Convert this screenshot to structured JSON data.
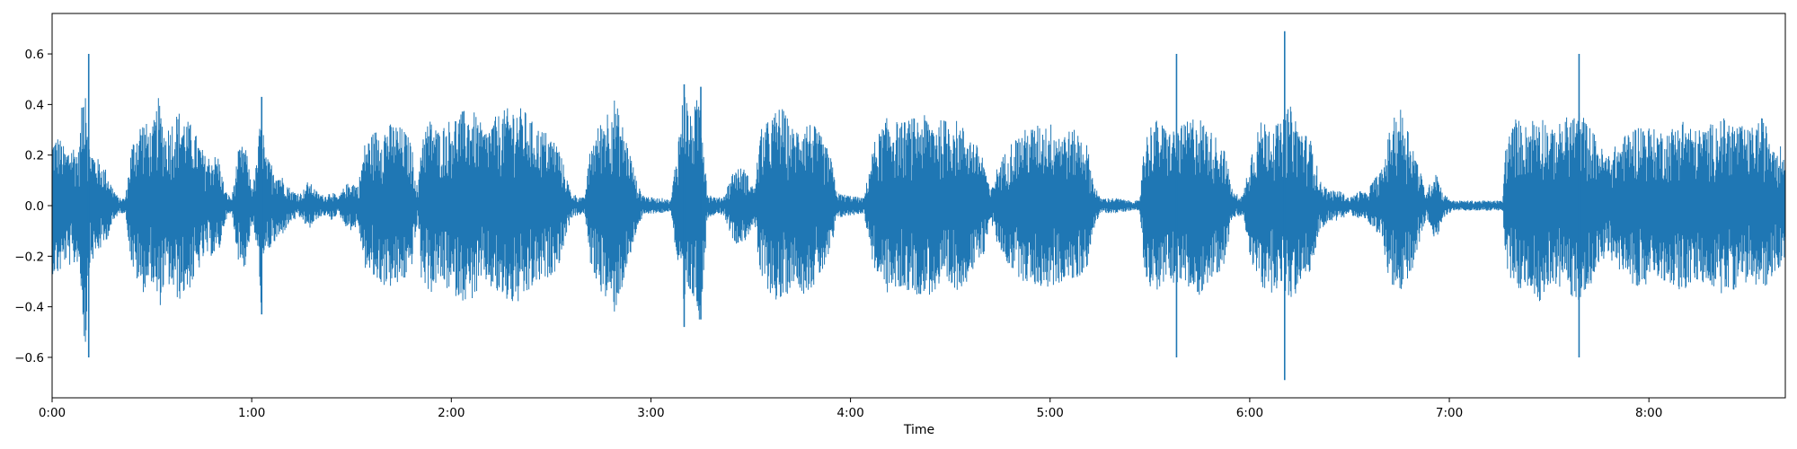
{
  "chart_data": {
    "type": "line",
    "title": "",
    "xlabel": "Time",
    "ylabel": "",
    "x_unit": "seconds",
    "xlim": [
      0,
      521
    ],
    "ylim": [
      -0.76,
      0.76
    ],
    "grid": false,
    "legend": "none",
    "line_color": "#1f77b4",
    "x_ticks": [
      {
        "value": 0,
        "label": "0:00"
      },
      {
        "value": 60,
        "label": "1:00"
      },
      {
        "value": 120,
        "label": "2:00"
      },
      {
        "value": 180,
        "label": "3:00"
      },
      {
        "value": 240,
        "label": "4:00"
      },
      {
        "value": 300,
        "label": "5:00"
      },
      {
        "value": 360,
        "label": "6:00"
      },
      {
        "value": 420,
        "label": "7:00"
      },
      {
        "value": 480,
        "label": "8:00"
      }
    ],
    "y_ticks": [
      {
        "value": 0.6,
        "label": "0.6"
      },
      {
        "value": 0.4,
        "label": "0.4"
      },
      {
        "value": 0.2,
        "label": "0.2"
      },
      {
        "value": 0.0,
        "label": "0.0"
      },
      {
        "value": -0.2,
        "label": "−0.2"
      },
      {
        "value": -0.4,
        "label": "−0.4"
      },
      {
        "value": -0.6,
        "label": "−0.6"
      }
    ],
    "envelope": [
      [
        0,
        0.27
      ],
      [
        2,
        0.28
      ],
      [
        4,
        0.22
      ],
      [
        6,
        0.25
      ],
      [
        8,
        0.22
      ],
      [
        10,
        0.6
      ],
      [
        11,
        0.25
      ],
      [
        13,
        0.2
      ],
      [
        16,
        0.15
      ],
      [
        18,
        0.08
      ],
      [
        20,
        0.03
      ],
      [
        22,
        0.03
      ],
      [
        24,
        0.25
      ],
      [
        27,
        0.35
      ],
      [
        30,
        0.3
      ],
      [
        32,
        0.43
      ],
      [
        34,
        0.3
      ],
      [
        38,
        0.38
      ],
      [
        42,
        0.32
      ],
      [
        46,
        0.2
      ],
      [
        50,
        0.2
      ],
      [
        52,
        0.06
      ],
      [
        54,
        0.03
      ],
      [
        56,
        0.22
      ],
      [
        58,
        0.25
      ],
      [
        60,
        0.08
      ],
      [
        61,
        0.12
      ],
      [
        62,
        0.25
      ],
      [
        63,
        0.43
      ],
      [
        64,
        0.2
      ],
      [
        67,
        0.15
      ],
      [
        69,
        0.12
      ],
      [
        72,
        0.06
      ],
      [
        75,
        0.05
      ],
      [
        77,
        0.1
      ],
      [
        80,
        0.05
      ],
      [
        82,
        0.04
      ],
      [
        84,
        0.06
      ],
      [
        86,
        0.03
      ],
      [
        88,
        0.08
      ],
      [
        90,
        0.1
      ],
      [
        92,
        0.08
      ],
      [
        94,
        0.25
      ],
      [
        97,
        0.3
      ],
      [
        100,
        0.32
      ],
      [
        103,
        0.33
      ],
      [
        106,
        0.3
      ],
      [
        108,
        0.25
      ],
      [
        110,
        0.05
      ],
      [
        111,
        0.3
      ],
      [
        114,
        0.35
      ],
      [
        116,
        0.3
      ],
      [
        120,
        0.35
      ],
      [
        124,
        0.38
      ],
      [
        127,
        0.37
      ],
      [
        130,
        0.3
      ],
      [
        133,
        0.35
      ],
      [
        136,
        0.38
      ],
      [
        139,
        0.4
      ],
      [
        142,
        0.38
      ],
      [
        145,
        0.32
      ],
      [
        148,
        0.3
      ],
      [
        152,
        0.25
      ],
      [
        156,
        0.05
      ],
      [
        160,
        0.03
      ],
      [
        162,
        0.25
      ],
      [
        166,
        0.37
      ],
      [
        169,
        0.43
      ],
      [
        172,
        0.3
      ],
      [
        174,
        0.2
      ],
      [
        176,
        0.08
      ],
      [
        178,
        0.04
      ],
      [
        181,
        0.03
      ],
      [
        184,
        0.03
      ],
      [
        186,
        0.02
      ],
      [
        190,
        0.48
      ],
      [
        192,
        0.35
      ],
      [
        195,
        0.47
      ],
      [
        197,
        0.05
      ],
      [
        200,
        0.03
      ],
      [
        202,
        0.04
      ],
      [
        205,
        0.15
      ],
      [
        208,
        0.15
      ],
      [
        211,
        0.07
      ],
      [
        213,
        0.3
      ],
      [
        216,
        0.35
      ],
      [
        219,
        0.4
      ],
      [
        223,
        0.3
      ],
      [
        226,
        0.35
      ],
      [
        229,
        0.32
      ],
      [
        231,
        0.28
      ],
      [
        234,
        0.2
      ],
      [
        236,
        0.05
      ],
      [
        240,
        0.04
      ],
      [
        244,
        0.03
      ],
      [
        247,
        0.25
      ],
      [
        251,
        0.35
      ],
      [
        255,
        0.33
      ],
      [
        259,
        0.35
      ],
      [
        263,
        0.36
      ],
      [
        267,
        0.34
      ],
      [
        271,
        0.35
      ],
      [
        275,
        0.3
      ],
      [
        280,
        0.2
      ],
      [
        282,
        0.05
      ],
      [
        284,
        0.15
      ],
      [
        288,
        0.25
      ],
      [
        292,
        0.3
      ],
      [
        296,
        0.32
      ],
      [
        300,
        0.33
      ],
      [
        304,
        0.3
      ],
      [
        308,
        0.3
      ],
      [
        311,
        0.25
      ],
      [
        313,
        0.1
      ],
      [
        315,
        0.03
      ],
      [
        320,
        0.03
      ],
      [
        324,
        0.02
      ],
      [
        327,
        0.02
      ],
      [
        328,
        0.25
      ],
      [
        331,
        0.35
      ],
      [
        336,
        0.3
      ],
      [
        340,
        0.32
      ],
      [
        344,
        0.37
      ],
      [
        348,
        0.3
      ],
      [
        352,
        0.25
      ],
      [
        355,
        0.05
      ],
      [
        358,
        0.04
      ],
      [
        360,
        0.2
      ],
      [
        363,
        0.33
      ],
      [
        366,
        0.35
      ],
      [
        369,
        0.32
      ],
      [
        372,
        0.4
      ],
      [
        376,
        0.3
      ],
      [
        379,
        0.25
      ],
      [
        381,
        0.1
      ],
      [
        384,
        0.06
      ],
      [
        387,
        0.06
      ],
      [
        390,
        0.03
      ],
      [
        393,
        0.06
      ],
      [
        395,
        0.05
      ],
      [
        397,
        0.1
      ],
      [
        400,
        0.15
      ],
      [
        402,
        0.3
      ],
      [
        405,
        0.4
      ],
      [
        408,
        0.3
      ],
      [
        410,
        0.2
      ],
      [
        413,
        0.05
      ],
      [
        416,
        0.15
      ],
      [
        418,
        0.05
      ],
      [
        421,
        0.02
      ],
      [
        425,
        0.02
      ],
      [
        430,
        0.02
      ],
      [
        436,
        0.02
      ],
      [
        437,
        0.25
      ],
      [
        440,
        0.35
      ],
      [
        443,
        0.32
      ],
      [
        447,
        0.38
      ],
      [
        451,
        0.3
      ],
      [
        455,
        0.35
      ],
      [
        459,
        0.38
      ],
      [
        463,
        0.3
      ],
      [
        467,
        0.2
      ],
      [
        471,
        0.25
      ],
      [
        474,
        0.3
      ],
      [
        478,
        0.33
      ],
      [
        482,
        0.3
      ],
      [
        486,
        0.3
      ],
      [
        490,
        0.35
      ],
      [
        494,
        0.3
      ],
      [
        498,
        0.32
      ],
      [
        502,
        0.35
      ],
      [
        506,
        0.33
      ],
      [
        510,
        0.3
      ],
      [
        514,
        0.35
      ],
      [
        516,
        0.3
      ],
      [
        519,
        0.25
      ],
      [
        521,
        0.2
      ]
    ],
    "spikes": [
      {
        "x": 11,
        "max": 0.6,
        "min": -0.6
      },
      {
        "x": 63,
        "max": 0.43,
        "min": -0.43
      },
      {
        "x": 190,
        "max": 0.48,
        "min": -0.48
      },
      {
        "x": 195,
        "max": 0.47,
        "min": -0.45
      },
      {
        "x": 338,
        "max": 0.6,
        "min": -0.6
      },
      {
        "x": 370.5,
        "max": 0.69,
        "min": -0.69
      },
      {
        "x": 459,
        "max": 0.6,
        "min": -0.6
      }
    ]
  }
}
